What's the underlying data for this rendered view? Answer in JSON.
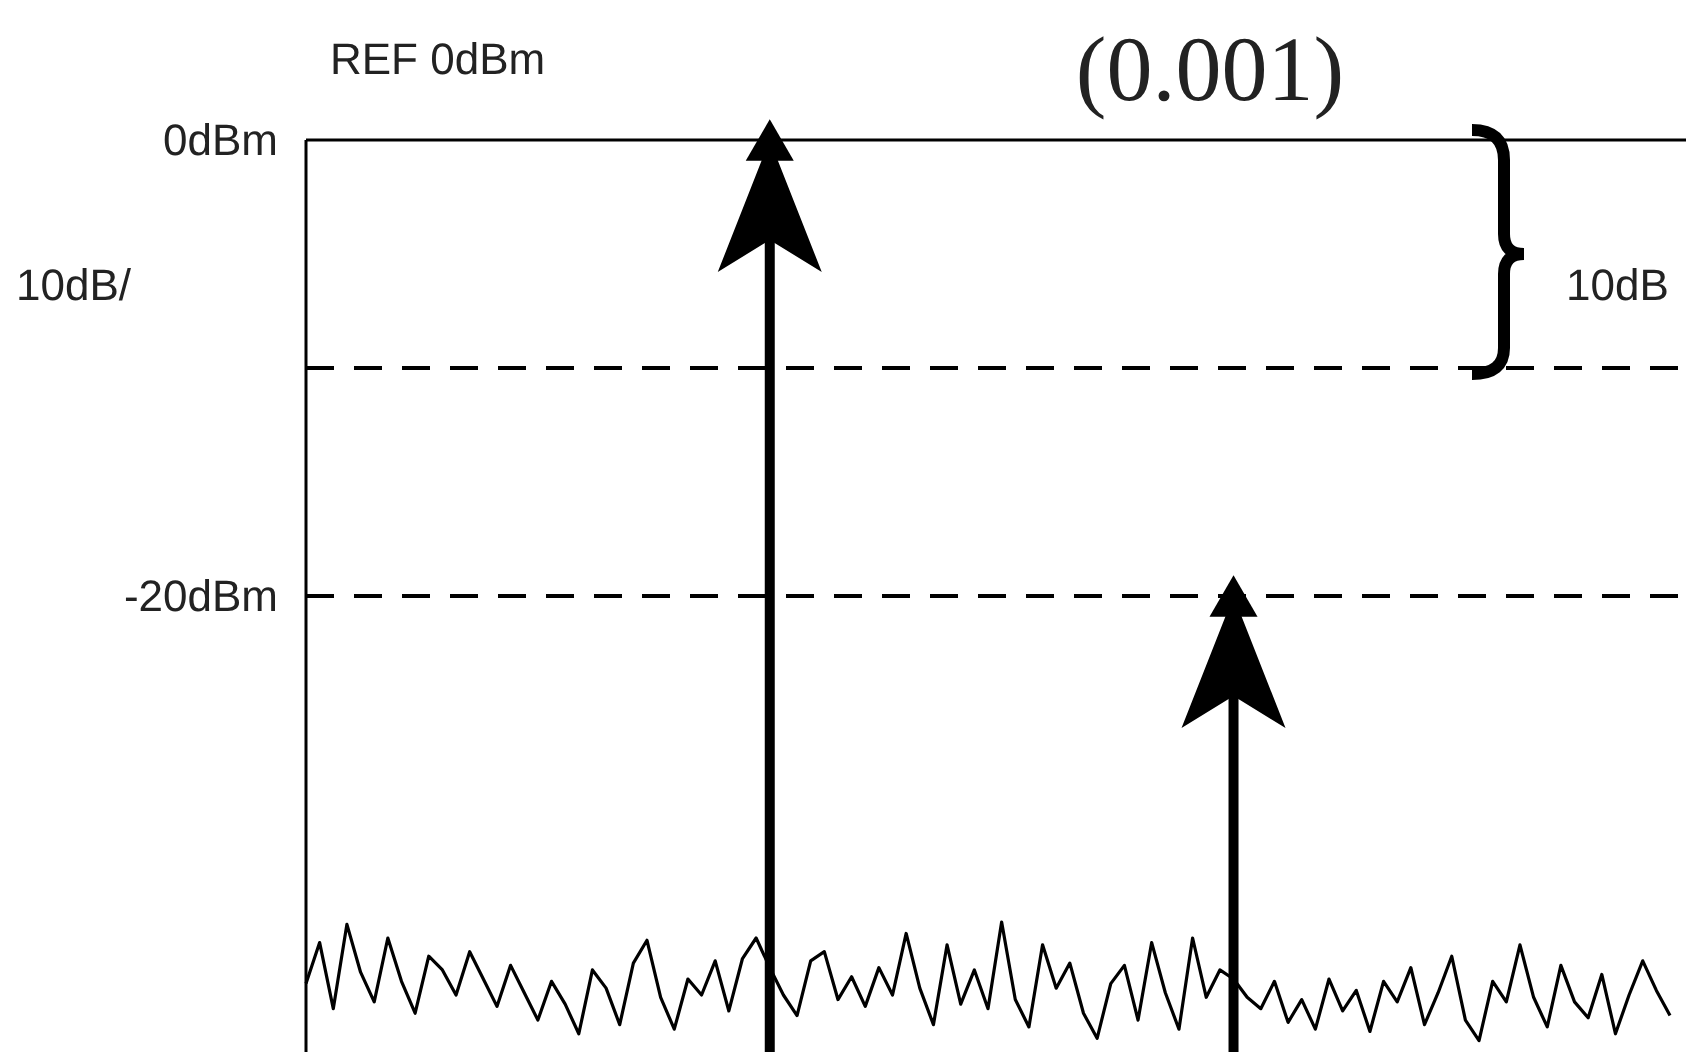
{
  "chart_data": {
    "type": "line",
    "categories": [
      null,
      null,
      null,
      null,
      null,
      null,
      null,
      null,
      null,
      null,
      null,
      null,
      null,
      null,
      null,
      null,
      null,
      null,
      null,
      null,
      null,
      null,
      null,
      null,
      null,
      null,
      null,
      null,
      null,
      null,
      null,
      null,
      null,
      null,
      null,
      null,
      null,
      null,
      null,
      null,
      null,
      null,
      null,
      null,
      null,
      null,
      null,
      null,
      null,
      null,
      null,
      null,
      null,
      null,
      null,
      null,
      null,
      null,
      null,
      null,
      null,
      null,
      null,
      null,
      null,
      null,
      null,
      null,
      null,
      null,
      null,
      null,
      null,
      null,
      null,
      null,
      null,
      null,
      null,
      null,
      null,
      null,
      null,
      null,
      null,
      null,
      null,
      null,
      null,
      null,
      null,
      null,
      null,
      null,
      null,
      null,
      null,
      null,
      null,
      null,
      null
    ],
    "series": [
      {
        "type": "line",
        "color": "#000000",
        "values": [
          -37.0,
          -35.2,
          -38.1,
          -34.4,
          -36.5,
          -37.8,
          -35.0,
          -36.9,
          -38.3,
          -35.8,
          -36.4,
          -37.5,
          -35.6,
          -36.8,
          -38.0,
          -36.2,
          -37.4,
          -38.6,
          -36.9,
          -37.9,
          -39.2,
          -36.4,
          -37.2,
          -38.8,
          -36.1,
          -35.1,
          -37.6,
          -39.0,
          -36.8,
          -37.5,
          -36.0,
          -38.2,
          -35.9,
          -35.0,
          -36.3,
          -37.5,
          -38.4,
          -36.0,
          -35.6,
          -37.7,
          -36.7,
          -38.0,
          -36.3,
          -37.5,
          -34.8,
          -37.2,
          -38.8,
          -35.3,
          -37.9,
          -36.4,
          -38.1,
          -34.3,
          -37.7,
          -38.9,
          -35.3,
          -37.2,
          -36.1,
          -38.3,
          -39.4,
          -37.0,
          -36.2,
          -38.6,
          -35.2,
          -37.4,
          -39.0,
          -35.0,
          -37.6,
          -36.4,
          -36.8,
          -37.6,
          -38.1,
          -36.9,
          -38.7,
          -37.7,
          -39.0,
          -36.8,
          -38.2,
          -37.3,
          -39.1,
          -36.9,
          -37.8,
          -36.3,
          -38.8,
          -37.4,
          -35.8,
          -38.6,
          -39.5,
          -36.9,
          -37.8,
          -35.3,
          -37.6,
          -38.9,
          -36.2,
          -37.8,
          -38.5,
          -36.6,
          -39.2,
          -37.5,
          -36.0,
          -37.3,
          -38.4
        ]
      },
      {
        "type": "lollipop",
        "color": "#000000",
        "marker": "triangle",
        "values": [
          null,
          null,
          null,
          null,
          null,
          null,
          null,
          null,
          null,
          null,
          null,
          null,
          null,
          null,
          null,
          null,
          null,
          null,
          null,
          null,
          null,
          null,
          null,
          null,
          null,
          null,
          null,
          null,
          null,
          null,
          null,
          null,
          null,
          null,
          0,
          null,
          null,
          null,
          null,
          null,
          null,
          null,
          null,
          null,
          null,
          null,
          null,
          null,
          null,
          null,
          null,
          null,
          null,
          null,
          null,
          null,
          null,
          null,
          null,
          null,
          null,
          null,
          null,
          null,
          null,
          null,
          null,
          null,
          -20,
          null,
          null,
          null,
          null,
          null,
          null,
          null,
          null,
          null,
          null,
          null,
          null,
          null,
          null,
          null,
          null,
          null,
          null,
          null,
          null,
          null,
          null,
          null,
          null,
          null,
          null,
          null,
          null,
          null,
          null,
          null,
          null
        ]
      }
    ],
    "ylim": [
      -40,
      0
    ],
    "yticks": [
      {
        "value": 0,
        "label": "0dBm"
      },
      {
        "value": -20,
        "label": "-20dBm"
      }
    ],
    "tick_labels": "y",
    "ref_lines": [
      {
        "axis": "y",
        "value": -10,
        "line_style": "dashed"
      },
      {
        "axis": "y",
        "value": -20,
        "line_style": "dashed"
      }
    ],
    "annotations": [
      "REF 0dBm",
      "10dB/",
      "10dB",
      "(0.001)"
    ]
  }
}
